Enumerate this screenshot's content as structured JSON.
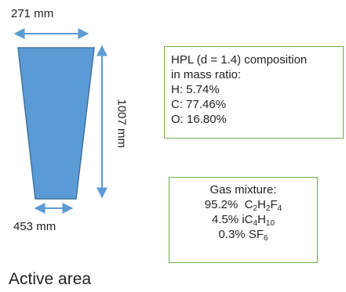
{
  "dimensions": {
    "top_width": "271 mm",
    "bottom_width": "453 mm",
    "height": "1007 mm"
  },
  "hpl_box": {
    "line1": "HPL (d = 1.4) composition",
    "line2": "in mass ratio:",
    "line3": "H:  5.74%",
    "line4": "C: 77.46%",
    "line5": "O: 16.80%"
  },
  "gas_box": {
    "title": "Gas mixture:",
    "item1_pct": "95.2%",
    "item1_formula": [
      "C",
      "2",
      "H",
      "2",
      "F",
      "4"
    ],
    "item2_pct": "4.5%",
    "item2_formula": [
      "iC",
      "4",
      "H",
      "10"
    ],
    "item3_pct": "0.3%",
    "item3_formula": [
      "SF",
      "6"
    ]
  },
  "caption": "Active area",
  "colors": {
    "shape_fill": "#5b9bd5",
    "shape_stroke": "#41719c",
    "arrow": "#5b9bd5",
    "box_border": "#70ad47"
  }
}
